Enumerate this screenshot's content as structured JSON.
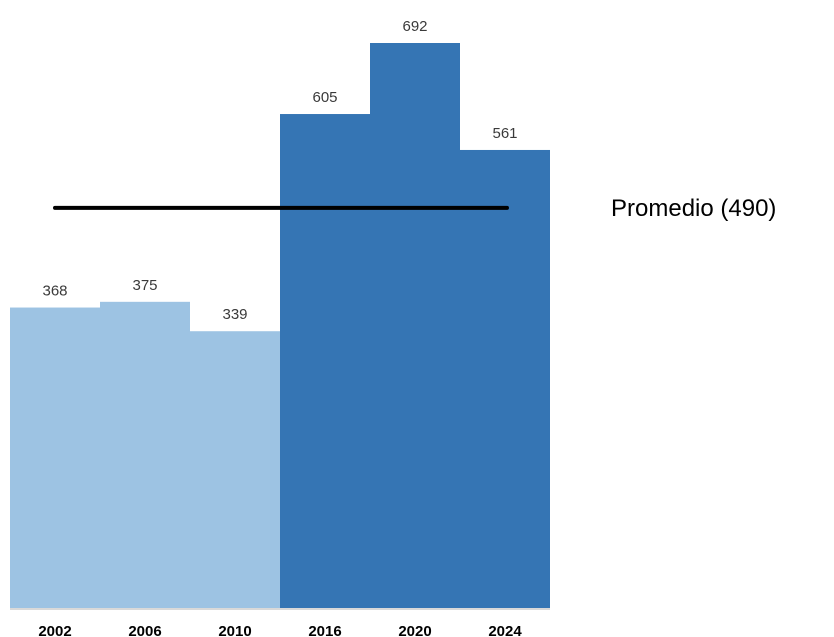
{
  "chart_data": {
    "type": "bar",
    "categories": [
      "2002",
      "2006",
      "2010",
      "2016",
      "2020",
      "2024"
    ],
    "values": [
      368,
      375,
      339,
      605,
      692,
      561
    ],
    "value_labels": [
      "368",
      "375",
      "339",
      "605",
      "692",
      "561"
    ],
    "bar_colors": [
      "#9dc3e3",
      "#9dc3e3",
      "#9dc3e3",
      "#3575b4",
      "#3575b4",
      "#3575b4"
    ],
    "average": 490,
    "average_label": "Promedio (490)",
    "average_line_color": "#000000",
    "axis_color": "#d9d9d9",
    "title": "",
    "xlabel": "",
    "ylabel": "",
    "ylim": [
      0,
      692
    ],
    "grid": false,
    "legend": "none"
  }
}
